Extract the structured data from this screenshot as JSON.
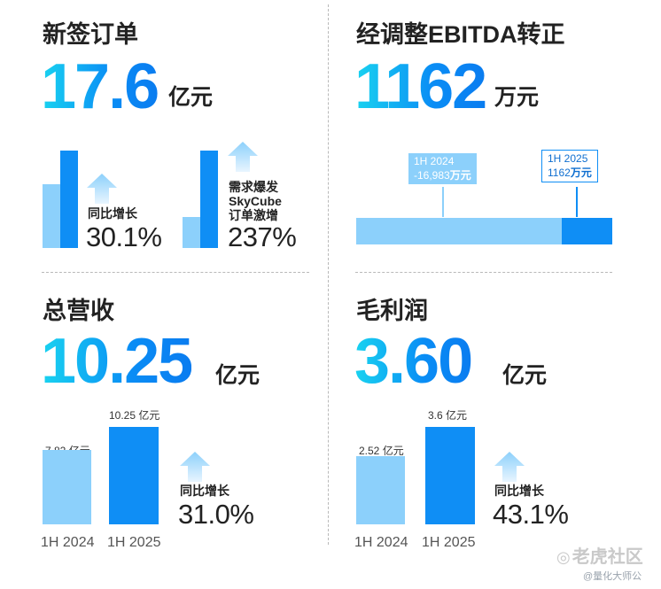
{
  "colors": {
    "accent": "#0f8ef5",
    "accent_light": "#8cd0fb",
    "gradient_start": "#19d3f0"
  },
  "q1": {
    "title": "新签订单",
    "value": "17.6",
    "unit": "亿元",
    "growth1": {
      "label": "同比增长",
      "pct": "30.1%"
    },
    "growth2": {
      "label_line1": "需求爆发",
      "label_line2": "SkyCube",
      "label_line3": "订单激增",
      "pct": "237%"
    }
  },
  "q2": {
    "title": "经调整EBITDA转正",
    "value": "1162",
    "unit": "万元",
    "callout_2024": {
      "period": "1H 2024",
      "value": "-16,983",
      "unit": "万元"
    },
    "callout_2025": {
      "period": "1H 2025",
      "value": "1162",
      "unit": "万元"
    }
  },
  "q3": {
    "title": "总营收",
    "value": "10.25",
    "unit": "亿元",
    "bars": [
      {
        "period": "1H 2024",
        "label": "7.82 亿元",
        "value": 7.82
      },
      {
        "period": "1H 2025",
        "label": "10.25 亿元",
        "value": 10.25
      }
    ],
    "growth": {
      "label": "同比增长",
      "pct": "31.0%"
    }
  },
  "q4": {
    "title": "毛利润",
    "value": "3.60",
    "unit": "亿元",
    "bars": [
      {
        "period": "1H 2024",
        "label": "2.52 亿元",
        "value": 2.52
      },
      {
        "period": "1H 2025",
        "label": "3.6 亿元",
        "value": 3.6
      }
    ],
    "growth": {
      "label": "同比增长",
      "pct": "43.1%"
    }
  },
  "watermark": {
    "brand": "老虎社区",
    "handle": "@量化大师公"
  }
}
